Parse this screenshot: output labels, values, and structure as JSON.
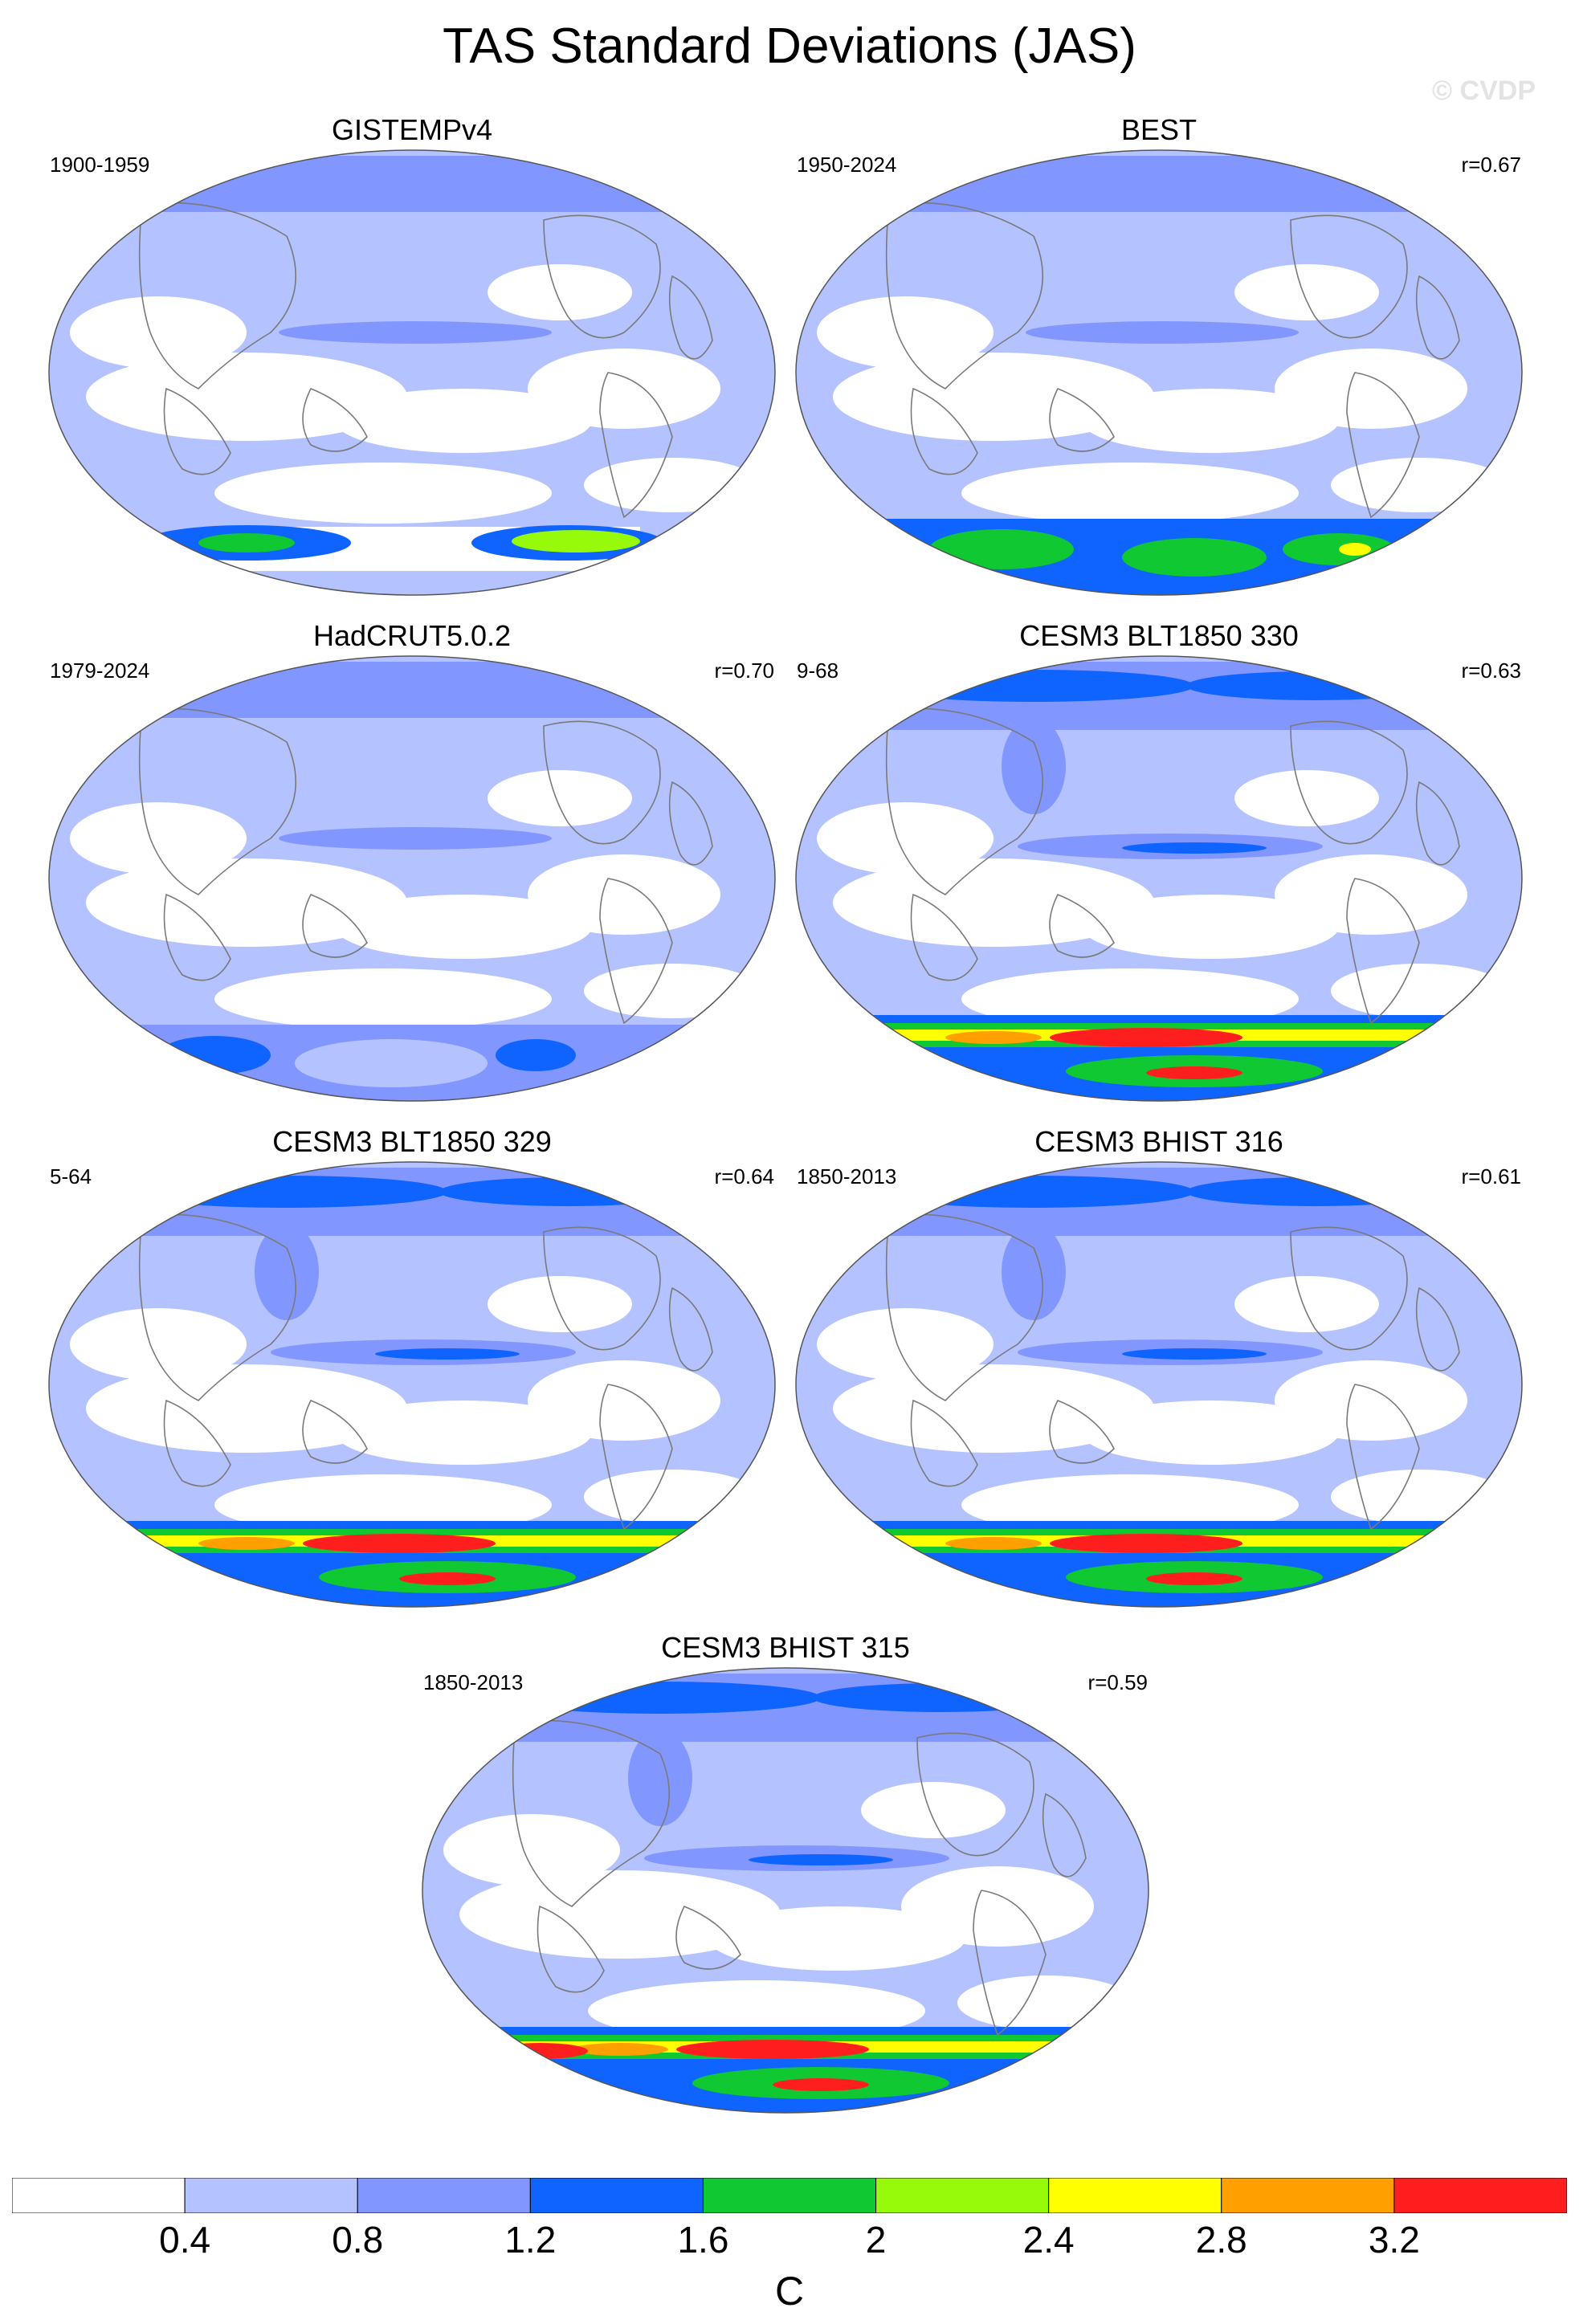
{
  "title": "TAS Standard Deviations (JAS)",
  "watermark": "© CVDP",
  "panels": [
    {
      "title": "GISTEMPv4",
      "period": "1900-1959",
      "corr": "",
      "style": "obs_gis"
    },
    {
      "title": "BEST",
      "period": "1950-2024",
      "corr": "r=0.67",
      "style": "obs_best"
    },
    {
      "title": "HadCRUT5.0.2",
      "period": "1979-2024",
      "corr": "r=0.70",
      "style": "obs_had"
    },
    {
      "title": "CESM3 BLT1850 330",
      "period": "9-68",
      "corr": "r=0.63",
      "style": "model_a"
    },
    {
      "title": "CESM3 BLT1850 329",
      "period": "5-64",
      "corr": "r=0.64",
      "style": "model_b"
    },
    {
      "title": "CESM3 BHIST 316",
      "period": "1850-2013",
      "corr": "r=0.61",
      "style": "model_b"
    },
    {
      "title": "CESM3 BHIST 315",
      "period": "1850-2013",
      "corr": "r=0.59",
      "style": "model_c"
    }
  ],
  "colorbar": {
    "colors": [
      "#ffffff",
      "#b4c3ff",
      "#8296ff",
      "#0f64ff",
      "#0fc832",
      "#96fa0a",
      "#ffff00",
      "#ffa000",
      "#ff1e1e"
    ],
    "labels": [
      "0.4",
      "0.8",
      "1.2",
      "1.6",
      "2",
      "2.4",
      "2.8",
      "3.2"
    ],
    "unit": "C"
  }
}
